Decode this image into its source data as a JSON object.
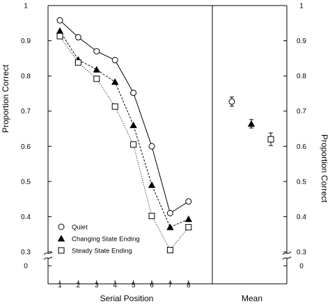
{
  "chart_data": [
    {
      "type": "line",
      "panel": "serial-position",
      "xlabel": "Serial Position",
      "ylabel": "Proportion Correct",
      "x": [
        1,
        2,
        3,
        4,
        5,
        6,
        7,
        8
      ],
      "ylim": [
        0,
        1
      ],
      "y_axis_break": "between 0 and 0.3",
      "yticks": [
        "0",
        "0.3",
        "0.4",
        "0.5",
        "0.6",
        "0.7",
        "0.8",
        "0.9",
        "1"
      ],
      "xticks": [
        "1",
        "2",
        "3",
        "4",
        "5",
        "6",
        "7",
        "8"
      ],
      "grid": false,
      "legend_position": "bottom-left",
      "series": [
        {
          "name": "Quiet",
          "marker": "open-circle",
          "line": "solid",
          "values": [
            0.958,
            0.91,
            0.87,
            0.845,
            0.752,
            0.6,
            0.41,
            0.443
          ]
        },
        {
          "name": "Changing State Ending",
          "marker": "filled-triangle",
          "line": "dashed",
          "values": [
            0.928,
            0.846,
            0.818,
            0.783,
            0.66,
            0.49,
            0.37,
            0.393
          ]
        },
        {
          "name": "Steady State Ending",
          "marker": "open-square",
          "line": "dotted",
          "values": [
            0.913,
            0.838,
            0.792,
            0.713,
            0.605,
            0.402,
            0.305,
            0.37
          ]
        }
      ]
    },
    {
      "type": "scatter",
      "panel": "mean",
      "xlabel": "Mean",
      "ylabel": "Proportion Correct",
      "ylim": [
        0,
        1
      ],
      "yticks": [
        "0",
        "0.3",
        "0.4",
        "0.5",
        "0.6",
        "0.7",
        "0.8",
        "0.9",
        "1"
      ],
      "series": [
        {
          "name": "Quiet",
          "marker": "open-circle",
          "value": 0.727,
          "error": 0.013
        },
        {
          "name": "Changing State Ending",
          "marker": "filled-triangle",
          "value": 0.664,
          "error": 0.012
        },
        {
          "name": "Steady State Ending",
          "marker": "open-square",
          "value": 0.62,
          "error": 0.018
        }
      ]
    }
  ]
}
